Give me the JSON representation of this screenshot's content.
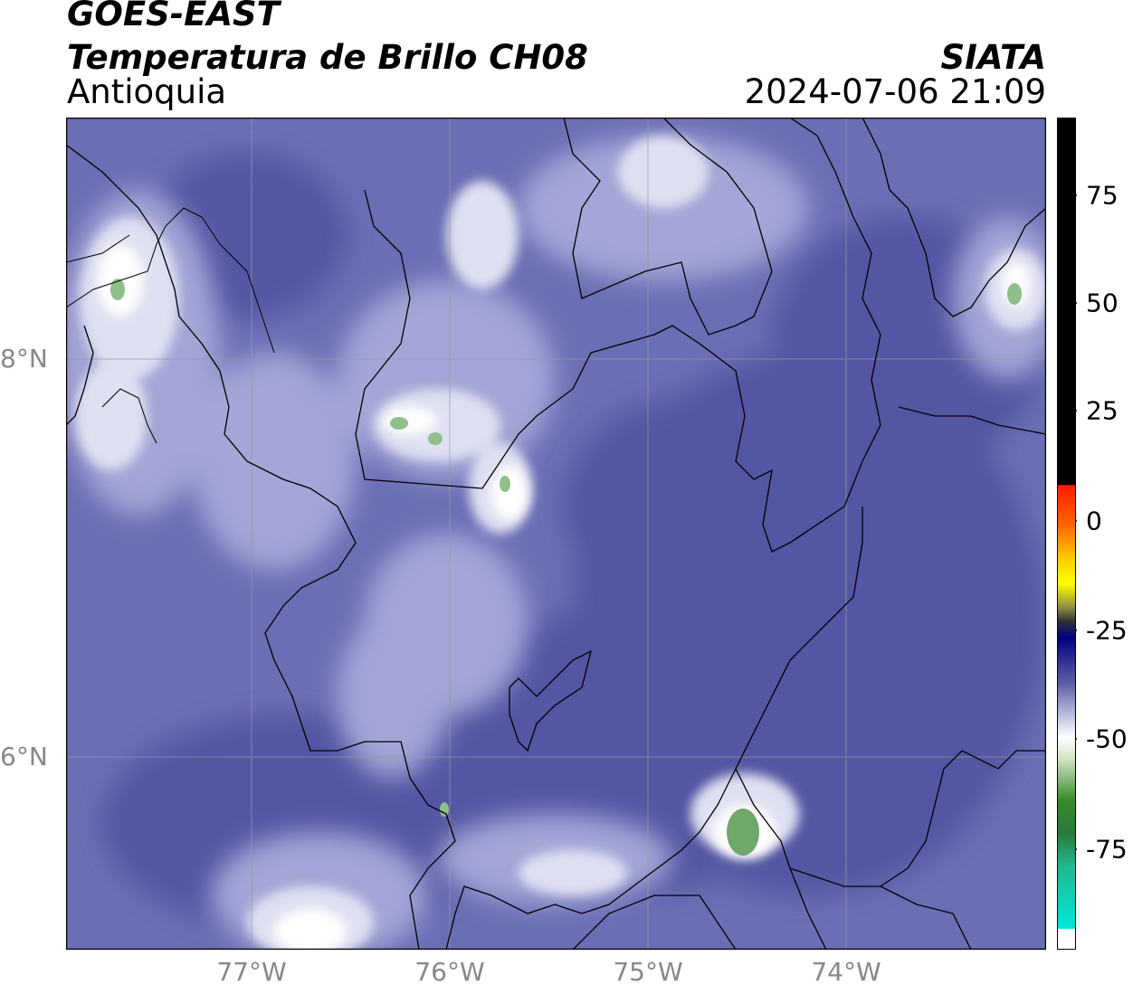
{
  "header": {
    "satellite": "GOES-EAST",
    "product": "Temperatura de Brillo CH08",
    "region": "Antioquia",
    "organization": "SIATA",
    "datetime": "2024-07-06 21:09"
  },
  "axes": {
    "lat_labels": [
      "8°N",
      "6°N"
    ],
    "lon_labels": [
      "77°W",
      "76°W",
      "75°W",
      "74°W"
    ]
  },
  "colorbar": {
    "ticks": [
      "75",
      "50",
      "25",
      "0",
      "-25",
      "-50",
      "-75"
    ],
    "colors": {
      "black": "#000000",
      "red": "#ff1a00",
      "orange": "#ff9900",
      "yellow": "#ffff00",
      "olive": "#555555",
      "navy": "#000080",
      "blue": "#5b5ea6",
      "white": "#ffffff",
      "green": "#3a8a2e",
      "cyan": "#00e8d8"
    }
  },
  "map_colors": {
    "base": "#5a5fa8",
    "light": "#c9cbe6",
    "bright": "#f2f3fa",
    "cold": "#8cc08a",
    "border": "#000000",
    "grid": "#aaaaaa"
  }
}
